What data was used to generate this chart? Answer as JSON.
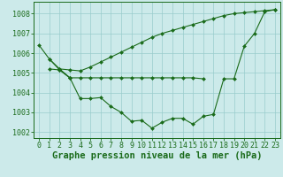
{
  "title": "Graphe pression niveau de la mer (hPa)",
  "xlabel_hours": [
    0,
    1,
    2,
    3,
    4,
    5,
    6,
    7,
    8,
    9,
    10,
    11,
    12,
    13,
    14,
    15,
    16,
    17,
    18,
    19,
    20,
    21,
    22,
    23
  ],
  "line1": [
    1006.4,
    1005.7,
    1005.2,
    1005.15,
    1005.1,
    1005.3,
    1005.55,
    1005.8,
    1006.05,
    1006.3,
    1006.55,
    1006.8,
    1007.0,
    1007.15,
    1007.3,
    1007.45,
    1007.6,
    1007.75,
    1007.9,
    1008.0,
    1008.05,
    1008.1,
    1008.15,
    1008.2
  ],
  "line2": [
    null,
    1005.2,
    1005.15,
    1004.75,
    1004.75,
    1004.75,
    1004.75,
    1004.75,
    1004.75,
    1004.75,
    1004.75,
    1004.75,
    1004.75,
    1004.75,
    1004.75,
    1004.75,
    1004.7,
    null,
    null,
    null,
    null,
    null,
    null,
    null
  ],
  "line3": [
    null,
    null,
    1005.2,
    1004.75,
    1003.7,
    1003.7,
    1003.75,
    1003.3,
    1003.0,
    1002.55,
    1002.6,
    1002.2,
    1002.5,
    1002.7,
    1002.7,
    1002.4,
    1002.8,
    1002.9,
    1004.7,
    1004.7,
    1006.35,
    1007.0,
    1008.1,
    1008.2
  ],
  "line4": [
    null,
    1005.7,
    1005.15,
    1004.75,
    null,
    null,
    null,
    null,
    null,
    null,
    null,
    null,
    null,
    null,
    null,
    null,
    null,
    null,
    null,
    null,
    null,
    null,
    null,
    null
  ],
  "bg_color": "#cceaea",
  "grid_color": "#99cccc",
  "line_color": "#1a6b1a",
  "marker": "D",
  "marker_size": 2.0,
  "linewidth": 0.8,
  "ylim": [
    1001.7,
    1008.6
  ],
  "yticks": [
    1002,
    1003,
    1004,
    1005,
    1006,
    1007,
    1008
  ],
  "title_fontsize": 7.5,
  "tick_fontsize": 6.0
}
